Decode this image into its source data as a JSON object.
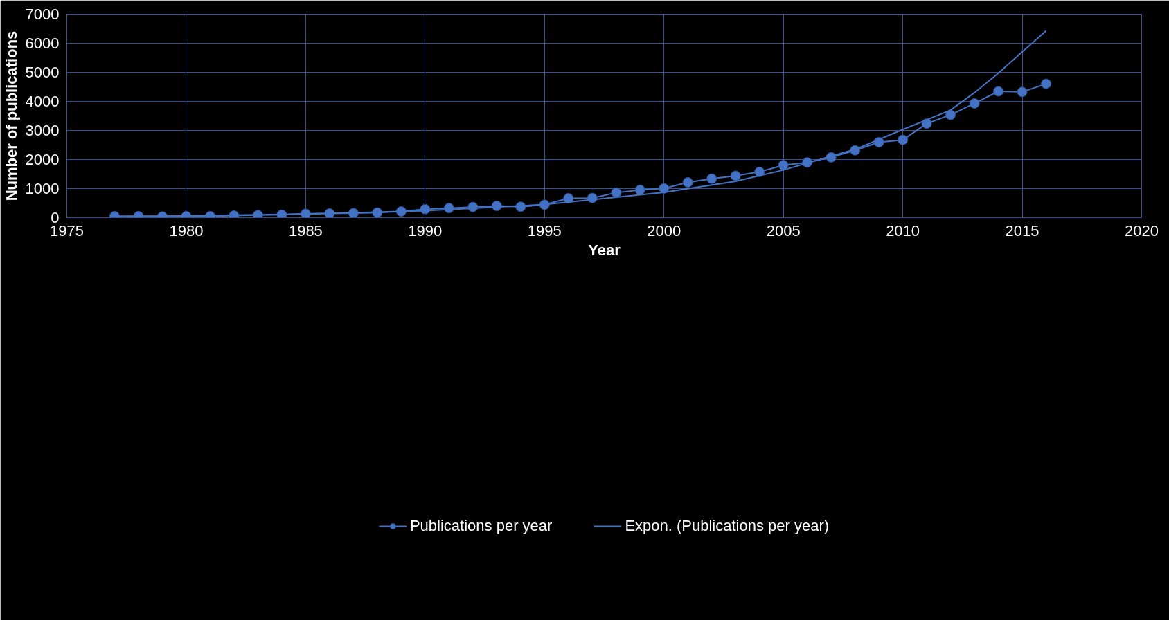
{
  "chart_data": {
    "type": "line",
    "xlabel": "Year",
    "ylabel": "Number of publications",
    "xlim": [
      1975,
      2020
    ],
    "xticks": [
      1975,
      1980,
      1985,
      1990,
      1995,
      2000,
      2005,
      2010,
      2015,
      2020
    ],
    "ylim": [
      0,
      7000
    ],
    "yticks": [
      0,
      1000,
      2000,
      3000,
      4000,
      5000,
      6000,
      7000
    ],
    "grid": true,
    "legend": "bottom",
    "series": [
      {
        "name": "Publications per year",
        "color": "#4472c4",
        "marker": "circle",
        "x": [
          1977,
          1978,
          1979,
          1980,
          1981,
          1982,
          1983,
          1984,
          1985,
          1986,
          1987,
          1988,
          1989,
          1990,
          1991,
          1992,
          1993,
          1994,
          1995,
          1996,
          1997,
          1998,
          1999,
          2000,
          2001,
          2002,
          2003,
          2004,
          2005,
          2006,
          2007,
          2008,
          2009,
          2010,
          2011,
          2012,
          2013,
          2014,
          2015,
          2016
        ],
        "values": [
          50,
          50,
          40,
          50,
          50,
          70,
          90,
          100,
          135,
          145,
          155,
          175,
          215,
          290,
          330,
          365,
          405,
          375,
          445,
          665,
          675,
          860,
          955,
          1005,
          1215,
          1340,
          1440,
          1575,
          1805,
          1900,
          2075,
          2315,
          2595,
          2675,
          3235,
          3535,
          3930,
          4345,
          4325,
          4605
        ]
      },
      {
        "name": "Expon. (Publications per year)",
        "color": "#4472c4",
        "marker": "none",
        "x": [
          1977,
          1980,
          1985,
          1990,
          1995,
          2000,
          2003,
          2005,
          2008,
          2010,
          2012,
          2013,
          2014,
          2015,
          2016
        ],
        "values": [
          45,
          65,
          125,
          240,
          450,
          870,
          1250,
          1640,
          2350,
          3030,
          3700,
          4300,
          4970,
          5700,
          6430
        ]
      }
    ]
  }
}
